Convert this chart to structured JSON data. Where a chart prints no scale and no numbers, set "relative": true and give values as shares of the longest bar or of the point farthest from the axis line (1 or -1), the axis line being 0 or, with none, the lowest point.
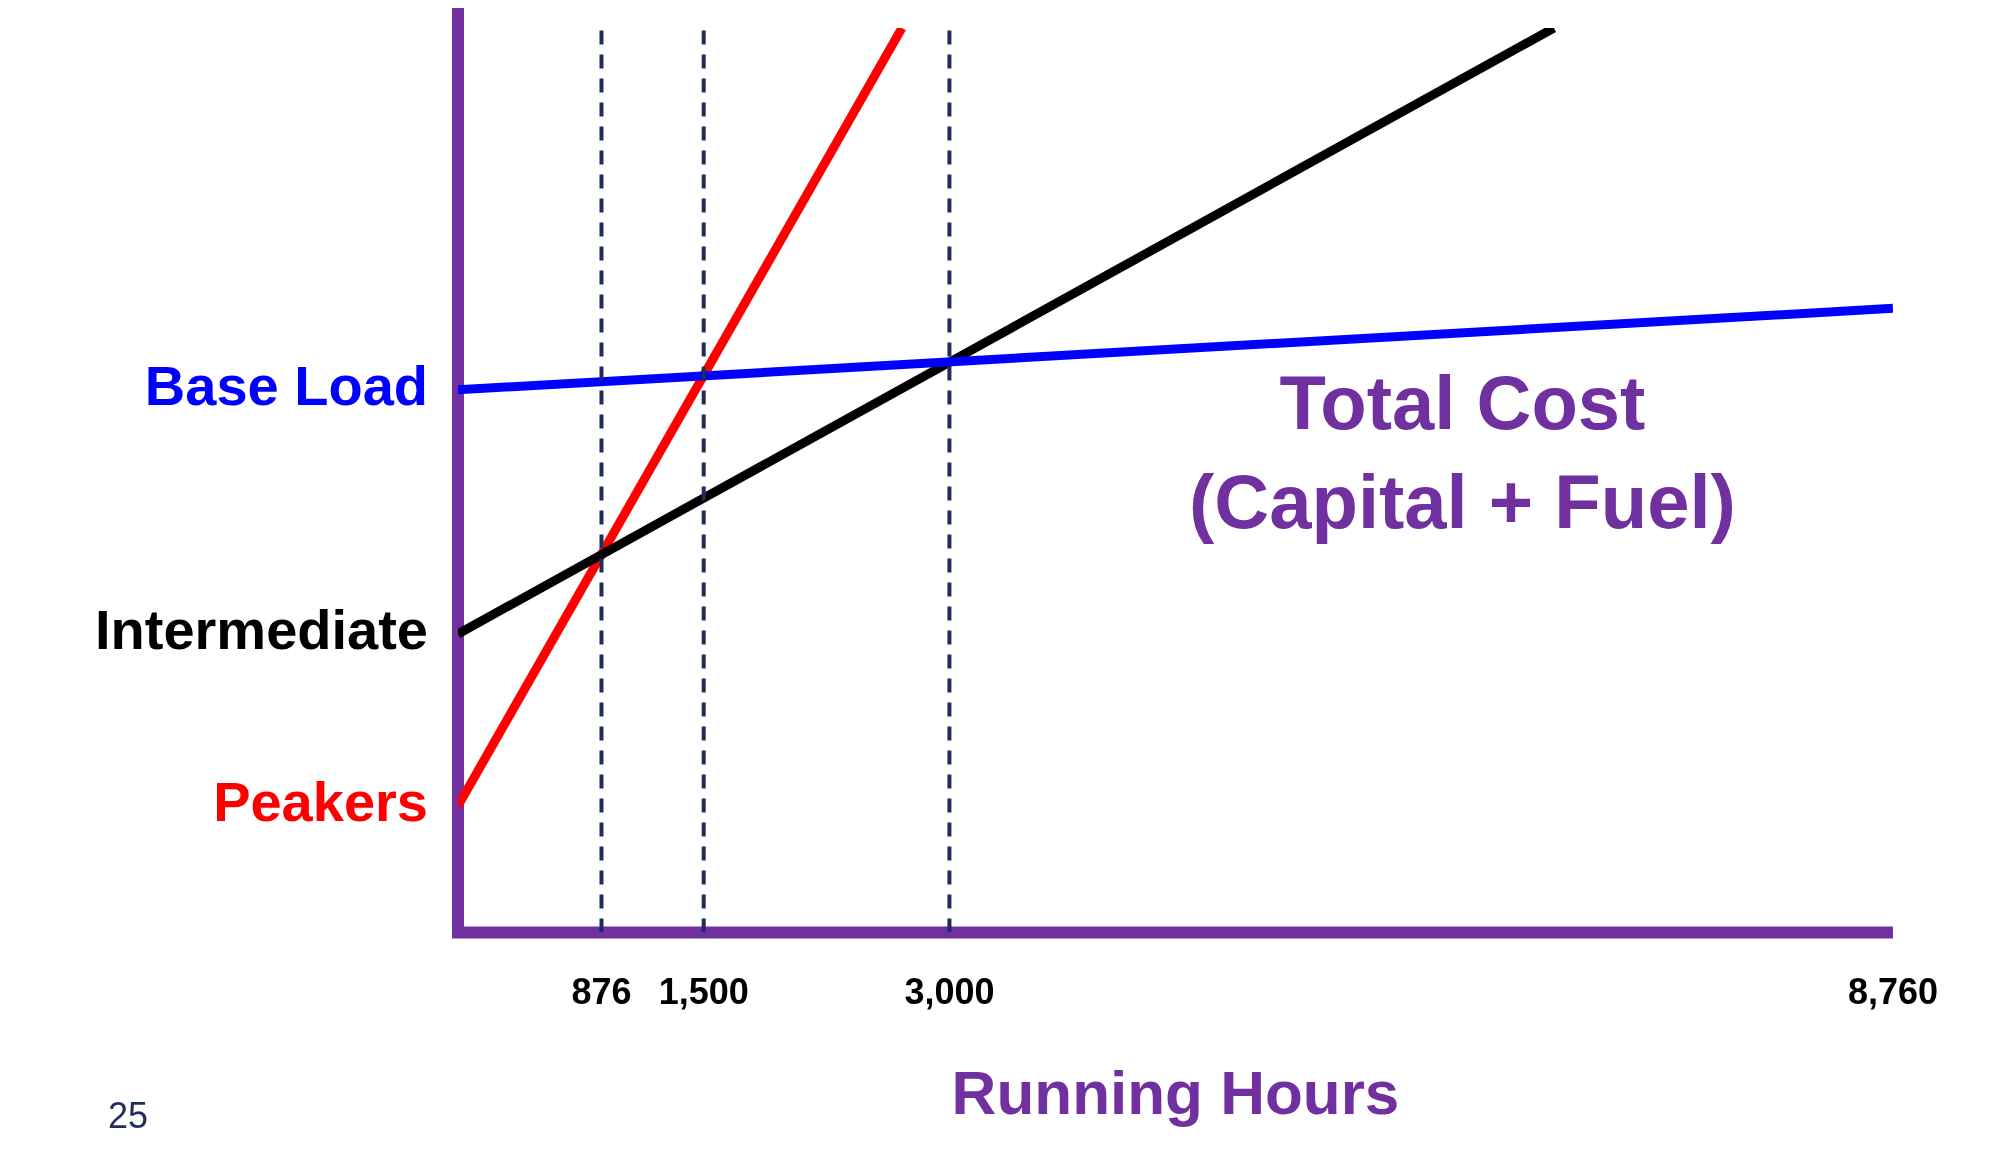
{
  "chart_data": {
    "type": "line",
    "relative": true,
    "xlabel": "Running Hours",
    "xlim": [
      0,
      8760
    ],
    "xticks": [
      876,
      {
        "value": 1500,
        "label": "1,500"
      },
      {
        "value": 3000,
        "label": "3,000"
      },
      {
        "value": 8760,
        "label": "8,760"
      }
    ],
    "series": [
      {
        "name": "Base Load",
        "color": "#0000ff",
        "x": [
          0,
          8760
        ],
        "values": [
          0.6,
          0.69
        ]
      },
      {
        "name": "Intermediate",
        "color": "#000000",
        "x": [
          0,
          6690
        ],
        "values": [
          0.33,
          1.0
        ]
      },
      {
        "name": "Peakers",
        "color": "#ff0000",
        "x": [
          0,
          2710
        ],
        "values": [
          0.14,
          1.0
        ]
      }
    ],
    "ref_lines": [
      {
        "axis": "x",
        "value": 876,
        "color": "#1f2d5c",
        "line_style": "dashed"
      },
      {
        "axis": "x",
        "value": 1500,
        "color": "#1f2d5c",
        "line_style": "dashed"
      },
      {
        "axis": "x",
        "value": 3000,
        "color": "#1f2d5c",
        "line_style": "dashed"
      }
    ],
    "annotations": [
      "Total Cost",
      "(Capital + Fuel)",
      "25"
    ],
    "grid": false,
    "legend": false,
    "marker": "none",
    "line_style": "solid"
  }
}
